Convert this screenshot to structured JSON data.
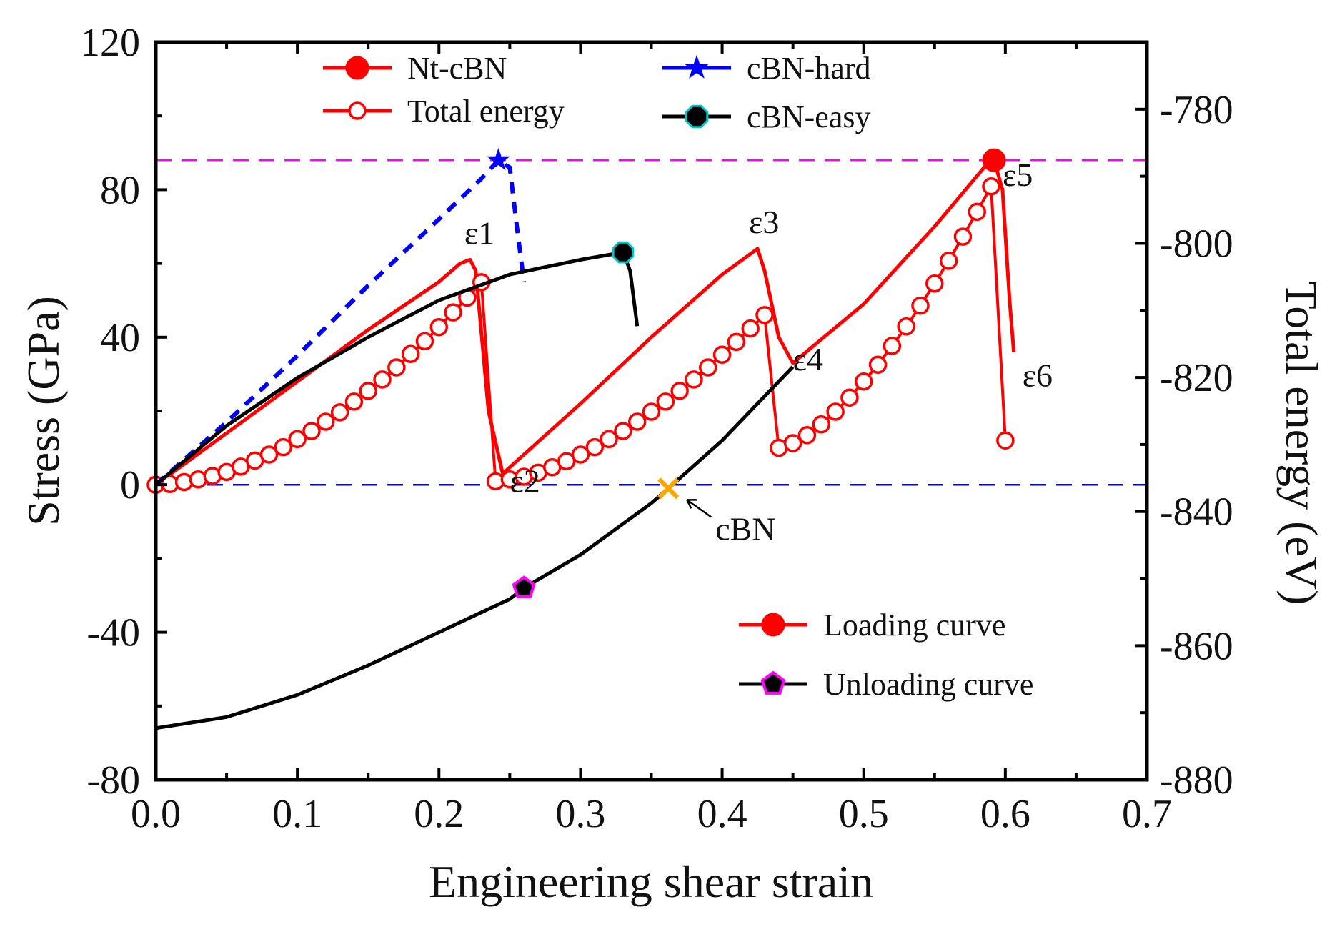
{
  "chart_data": {
    "type": "line",
    "xlabel": "Engineering shear strain",
    "ylabel": "Stress (GPa)",
    "y2label": "Total energy (eV)",
    "xlim": [
      0.0,
      0.7
    ],
    "ylim": [
      -80,
      120
    ],
    "y2lim": [
      -880,
      -770
    ],
    "xticks": [
      "0.0",
      "0.1",
      "0.2",
      "0.3",
      "0.4",
      "0.5",
      "0.6",
      "0.7"
    ],
    "yticks": [
      "-80",
      "-40",
      "0",
      "40",
      "80",
      "120"
    ],
    "y2ticks": [
      "-880",
      "-860",
      "-840",
      "-820",
      "-800",
      "-780"
    ],
    "grid": false,
    "colors": {
      "red": "#ff0000",
      "blue": "#0000ff",
      "black": "#000000",
      "magenta": "#ff00ff",
      "orange": "#ffa500",
      "teal": "#00c8c8"
    },
    "reference_lines": [
      {
        "axis": "y",
        "value": 88,
        "style": "dashed",
        "color": "#ff00ff"
      },
      {
        "axis": "y",
        "value": 0,
        "style": "dashed",
        "color": "#0000ff"
      }
    ],
    "series": [
      {
        "name": "Nt-cBN",
        "axis": "left",
        "color": "#ff0000",
        "marker": "filled-circle",
        "x": [
          0,
          0.05,
          0.1,
          0.15,
          0.2,
          0.215,
          0.222,
          0.226,
          0.235,
          0.245,
          0.3,
          0.35,
          0.4,
          0.425,
          0.43,
          0.44,
          0.45,
          0.5,
          0.55,
          0.585,
          0.592,
          0.598,
          0.603,
          0.606
        ],
        "y": [
          0,
          14,
          28,
          42,
          55,
          60,
          61,
          58,
          20,
          3,
          22,
          40,
          57,
          64,
          58,
          40,
          33,
          49,
          70,
          86,
          88,
          80,
          50,
          36
        ],
        "marker_points": [
          [
            0.592,
            88
          ]
        ]
      },
      {
        "name": "Total energy",
        "axis": "right",
        "color": "#ff0000",
        "marker": "open-circle",
        "x": [
          0,
          0.01,
          0.02,
          0.03,
          0.04,
          0.05,
          0.06,
          0.07,
          0.08,
          0.09,
          0.1,
          0.11,
          0.12,
          0.13,
          0.14,
          0.15,
          0.16,
          0.17,
          0.18,
          0.19,
          0.2,
          0.21,
          0.22,
          0.23,
          0.24,
          0.25,
          0.26,
          0.27,
          0.28,
          0.29,
          0.3,
          0.31,
          0.32,
          0.33,
          0.34,
          0.35,
          0.36,
          0.37,
          0.38,
          0.39,
          0.4,
          0.41,
          0.42,
          0.43,
          0.44,
          0.45,
          0.46,
          0.47,
          0.48,
          0.49,
          0.5,
          0.51,
          0.52,
          0.53,
          0.54,
          0.55,
          0.56,
          0.57,
          0.58,
          0.59,
          0.6
        ],
        "y": [
          -836.0,
          -835.9,
          -835.6,
          -835.2,
          -834.7,
          -834.1,
          -833.3,
          -832.4,
          -831.5,
          -830.4,
          -829.2,
          -828.0,
          -826.6,
          -825.2,
          -823.6,
          -822.0,
          -820.3,
          -818.5,
          -816.5,
          -814.6,
          -812.5,
          -810.3,
          -808.1,
          -805.8,
          -835.5,
          -835.2,
          -834.8,
          -834.2,
          -833.4,
          -832.5,
          -831.5,
          -830.4,
          -829.2,
          -828.0,
          -826.6,
          -825.1,
          -823.6,
          -822.0,
          -820.3,
          -818.5,
          -816.6,
          -814.7,
          -812.7,
          -810.7,
          -830.5,
          -829.8,
          -828.6,
          -827.0,
          -825.1,
          -823.0,
          -820.6,
          -818.1,
          -815.3,
          -812.4,
          -809.3,
          -806.0,
          -802.6,
          -799.0,
          -795.3,
          -791.5,
          -829.4
        ]
      },
      {
        "name": "cBN-hard",
        "axis": "left",
        "color": "#0000ff",
        "marker": "star",
        "style": "dashed",
        "x": [
          0,
          0.05,
          0.1,
          0.15,
          0.2,
          0.23,
          0.242,
          0.25,
          0.255,
          0.26
        ],
        "y": [
          0,
          17,
          35,
          54,
          72,
          83,
          88,
          86,
          70,
          55
        ],
        "marker_points": [
          [
            0.242,
            88
          ]
        ]
      },
      {
        "name": "cBN-easy",
        "axis": "left",
        "color": "#000000",
        "marker": "octagon",
        "x": [
          0,
          0.05,
          0.1,
          0.15,
          0.2,
          0.25,
          0.3,
          0.33,
          0.335,
          0.34
        ],
        "y": [
          0,
          16,
          29,
          40,
          50,
          57,
          61,
          63,
          58,
          43
        ],
        "marker_points": [
          [
            0.33,
            63
          ]
        ]
      },
      {
        "name": "Unloading curve",
        "axis": "left",
        "color": "#000000",
        "marker": "pentagon",
        "x": [
          0,
          0.05,
          0.1,
          0.15,
          0.2,
          0.25,
          0.26,
          0.3,
          0.35,
          0.362,
          0.4,
          0.45
        ],
        "y": [
          -66,
          -63,
          -57,
          -49,
          -40,
          -31,
          -28,
          -19,
          -5,
          -1,
          12,
          32
        ],
        "marker_points": [
          [
            0.26,
            -28
          ]
        ]
      }
    ],
    "legend": {
      "top": [
        "Nt-cBN",
        "Total energy",
        "cBN-hard",
        "cBN-easy"
      ],
      "bottom": [
        "Loading curve",
        "Unloading curve"
      ],
      "placement": "top and bottom-right"
    },
    "annotations": [
      {
        "text": "ε1",
        "x": 0.222,
        "y": 61
      },
      {
        "text": "ε2",
        "x": 0.245,
        "y": 3
      },
      {
        "text": "ε3",
        "x": 0.425,
        "y": 64
      },
      {
        "text": "ε4",
        "x": 0.45,
        "y": 33
      },
      {
        "text": "ε5",
        "x": 0.592,
        "y": 88
      },
      {
        "text": "ε6",
        "x": 0.606,
        "y": 36
      },
      {
        "text": "cBN",
        "x": 0.362,
        "y": -1,
        "marker": "x",
        "color": "#ffa500"
      }
    ]
  }
}
